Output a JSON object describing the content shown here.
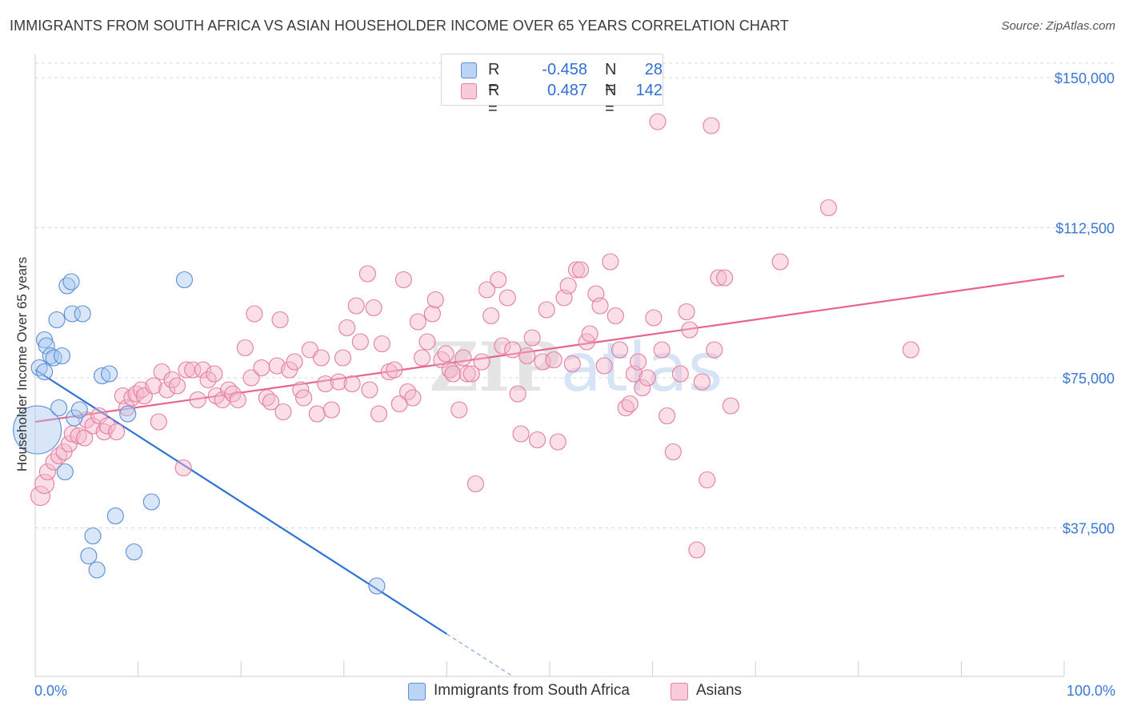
{
  "header": {
    "title": "IMMIGRANTS FROM SOUTH AFRICA VS ASIAN HOUSEHOLDER INCOME OVER 65 YEARS CORRELATION CHART",
    "source": "Source: ZipAtlas.com"
  },
  "legend": {
    "rows": [
      {
        "r_label": "R =",
        "r_value": "-0.458",
        "n_label": "N =",
        "n_value": "28"
      },
      {
        "r_label": "R =",
        "r_value": "0.487",
        "n_label": "N =",
        "n_value": "142"
      }
    ]
  },
  "bottom_legend": {
    "series1": "Immigrants from South Africa",
    "series2": "Asians"
  },
  "colors": {
    "blue_fill": "#a9c8f0",
    "blue_stroke": "#5b8fd6",
    "blue_line": "#2f72d6",
    "pink_fill": "#f5b8cb",
    "pink_stroke": "#e47fa0",
    "pink_line": "#e8648f",
    "tick_label": "#3a78d4",
    "grid": "#d9d9d9"
  },
  "chart_data": {
    "type": "scatter",
    "title": "IMMIGRANTS FROM SOUTH AFRICA VS ASIAN HOUSEHOLDER INCOME OVER 65 YEARS CORRELATION CHART",
    "xlabel": "",
    "ylabel": "Householder Income Over 65 years",
    "xlim": [
      0,
      100
    ],
    "ylim": [
      0,
      155000
    ],
    "x_tick_labels": [
      "0.0%",
      "100.0%"
    ],
    "y_ticks": [
      37500,
      75000,
      112500,
      150000
    ],
    "y_tick_labels": [
      "$37,500",
      "$75,000",
      "$112,500",
      "$150,000"
    ],
    "grid": true,
    "legend_position": "top-center",
    "watermark": "ZIPatlas",
    "series": [
      {
        "name": "Immigrants from South Africa",
        "color": "blue",
        "trend": {
          "x0": 0,
          "y0": 77000,
          "x1": 40,
          "y1": 11000,
          "dash_to_x": 46.5
        },
        "points": [
          [
            0.2,
            62000,
            30
          ],
          [
            0.4,
            77500,
            10
          ],
          [
            0.9,
            76500,
            10
          ],
          [
            0.9,
            84500,
            10
          ],
          [
            1.1,
            83000,
            10
          ],
          [
            1.5,
            80500,
            10
          ],
          [
            1.8,
            80000,
            10
          ],
          [
            2.1,
            89500,
            10
          ],
          [
            2.3,
            67500,
            10
          ],
          [
            2.6,
            80500,
            10
          ],
          [
            2.9,
            51500,
            10
          ],
          [
            3.1,
            98000,
            10
          ],
          [
            3.5,
            99000,
            10
          ],
          [
            3.6,
            91000,
            10
          ],
          [
            3.8,
            65000,
            10
          ],
          [
            4.3,
            67000,
            10
          ],
          [
            4.6,
            91000,
            10
          ],
          [
            5.2,
            30500,
            10
          ],
          [
            5.6,
            35500,
            10
          ],
          [
            6.0,
            27000,
            10
          ],
          [
            6.5,
            75500,
            10
          ],
          [
            7.2,
            76000,
            10
          ],
          [
            7.8,
            40500,
            10
          ],
          [
            9.0,
            66000,
            10
          ],
          [
            9.6,
            31500,
            10
          ],
          [
            11.3,
            44000,
            10
          ],
          [
            14.5,
            99500,
            10
          ],
          [
            33.2,
            23000,
            10
          ]
        ]
      },
      {
        "name": "Asians",
        "color": "pink",
        "trend": {
          "x0": 0,
          "y0": 64000,
          "x1": 100,
          "y1": 100500
        },
        "points": [
          [
            0.5,
            45500,
            12
          ],
          [
            0.9,
            48500,
            12
          ],
          [
            1.2,
            51500,
            10
          ],
          [
            1.8,
            54000,
            10
          ],
          [
            2.3,
            55500,
            10
          ],
          [
            2.8,
            56500,
            10
          ],
          [
            3.3,
            58500,
            10
          ],
          [
            3.6,
            61000,
            10
          ],
          [
            4.2,
            60500,
            10
          ],
          [
            4.8,
            60000,
            10
          ],
          [
            5.0,
            64500,
            10
          ],
          [
            5.6,
            63000,
            10
          ],
          [
            6.2,
            65500,
            10
          ],
          [
            6.7,
            61500,
            10
          ],
          [
            7.0,
            63000,
            10
          ],
          [
            7.9,
            61500,
            10
          ],
          [
            8.5,
            70500,
            10
          ],
          [
            8.9,
            67500,
            10
          ],
          [
            9.4,
            70000,
            10
          ],
          [
            9.8,
            71000,
            10
          ],
          [
            10.3,
            72000,
            10
          ],
          [
            10.6,
            70500,
            10
          ],
          [
            11.5,
            73000,
            10
          ],
          [
            12.0,
            64000,
            10
          ],
          [
            12.3,
            76500,
            10
          ],
          [
            12.8,
            72000,
            10
          ],
          [
            13.3,
            74500,
            10
          ],
          [
            13.8,
            73000,
            10
          ],
          [
            14.4,
            52500,
            10
          ],
          [
            14.7,
            77000,
            10
          ],
          [
            15.3,
            77000,
            10
          ],
          [
            15.8,
            69500,
            10
          ],
          [
            16.3,
            77000,
            10
          ],
          [
            16.8,
            74500,
            10
          ],
          [
            17.4,
            76000,
            10
          ],
          [
            17.6,
            70500,
            10
          ],
          [
            18.2,
            69500,
            10
          ],
          [
            18.8,
            72000,
            10
          ],
          [
            19.2,
            71000,
            10
          ],
          [
            19.7,
            69500,
            10
          ],
          [
            20.4,
            82500,
            10
          ],
          [
            21.0,
            75000,
            10
          ],
          [
            21.3,
            91000,
            10
          ],
          [
            22.0,
            77500,
            10
          ],
          [
            22.5,
            70000,
            10
          ],
          [
            22.9,
            69000,
            10
          ],
          [
            23.5,
            78000,
            10
          ],
          [
            23.8,
            89500,
            10
          ],
          [
            24.1,
            66500,
            10
          ],
          [
            24.7,
            77000,
            10
          ],
          [
            25.2,
            79000,
            10
          ],
          [
            25.8,
            72000,
            10
          ],
          [
            26.1,
            70000,
            10
          ],
          [
            26.7,
            82000,
            10
          ],
          [
            27.4,
            66000,
            10
          ],
          [
            27.8,
            80000,
            10
          ],
          [
            28.2,
            73500,
            10
          ],
          [
            28.8,
            67000,
            10
          ],
          [
            29.5,
            74000,
            10
          ],
          [
            29.9,
            80000,
            10
          ],
          [
            30.3,
            87500,
            10
          ],
          [
            30.8,
            73500,
            10
          ],
          [
            31.2,
            93000,
            10
          ],
          [
            31.6,
            84000,
            10
          ],
          [
            32.3,
            101000,
            10
          ],
          [
            32.5,
            72000,
            10
          ],
          [
            32.9,
            92500,
            10
          ],
          [
            33.4,
            66000,
            10
          ],
          [
            33.7,
            83500,
            10
          ],
          [
            34.4,
            76500,
            10
          ],
          [
            34.9,
            77000,
            10
          ],
          [
            35.4,
            68500,
            10
          ],
          [
            35.8,
            99500,
            10
          ],
          [
            36.2,
            71500,
            10
          ],
          [
            36.7,
            70000,
            10
          ],
          [
            37.2,
            89000,
            10
          ],
          [
            37.6,
            80000,
            10
          ],
          [
            38.1,
            84000,
            10
          ],
          [
            38.6,
            91000,
            10
          ],
          [
            38.9,
            94500,
            10
          ],
          [
            39.5,
            79500,
            10
          ],
          [
            39.9,
            81000,
            10
          ],
          [
            40.3,
            77000,
            10
          ],
          [
            40.6,
            76000,
            10
          ],
          [
            41.2,
            67000,
            10
          ],
          [
            41.6,
            80000,
            10
          ],
          [
            42.0,
            76000,
            10
          ],
          [
            42.4,
            76000,
            10
          ],
          [
            42.8,
            48500,
            10
          ],
          [
            43.4,
            79000,
            10
          ],
          [
            43.9,
            97000,
            10
          ],
          [
            44.3,
            90500,
            10
          ],
          [
            45.0,
            99500,
            10
          ],
          [
            45.4,
            83000,
            10
          ],
          [
            45.9,
            95000,
            10
          ],
          [
            46.4,
            82000,
            10
          ],
          [
            46.9,
            71000,
            10
          ],
          [
            47.2,
            61000,
            10
          ],
          [
            47.8,
            80500,
            10
          ],
          [
            48.3,
            85000,
            10
          ],
          [
            48.8,
            59500,
            10
          ],
          [
            49.3,
            79000,
            10
          ],
          [
            49.7,
            92000,
            10
          ],
          [
            50.4,
            79500,
            10
          ],
          [
            50.8,
            59000,
            10
          ],
          [
            51.4,
            95000,
            10
          ],
          [
            51.8,
            98000,
            10
          ],
          [
            52.2,
            78500,
            10
          ],
          [
            52.6,
            102000,
            10
          ],
          [
            53.0,
            102000,
            10
          ],
          [
            53.6,
            84000,
            10
          ],
          [
            53.9,
            86000,
            10
          ],
          [
            54.5,
            96000,
            10
          ],
          [
            54.9,
            93000,
            10
          ],
          [
            55.3,
            78000,
            10
          ],
          [
            55.9,
            104000,
            10
          ],
          [
            56.4,
            90500,
            10
          ],
          [
            56.8,
            82000,
            10
          ],
          [
            57.4,
            67500,
            10
          ],
          [
            57.8,
            68500,
            10
          ],
          [
            58.2,
            76000,
            10
          ],
          [
            58.6,
            79000,
            10
          ],
          [
            59.0,
            72500,
            10
          ],
          [
            59.5,
            75000,
            10
          ],
          [
            60.1,
            90000,
            10
          ],
          [
            60.5,
            139000,
            10
          ],
          [
            60.9,
            82000,
            10
          ],
          [
            61.4,
            65500,
            10
          ],
          [
            62.0,
            56500,
            10
          ],
          [
            62.7,
            76000,
            10
          ],
          [
            63.3,
            91500,
            10
          ],
          [
            63.6,
            87000,
            10
          ],
          [
            64.3,
            32000,
            10
          ],
          [
            64.8,
            74000,
            10
          ],
          [
            65.3,
            49500,
            10
          ],
          [
            65.7,
            138000,
            10
          ],
          [
            66.0,
            82000,
            10
          ],
          [
            66.4,
            100000,
            10
          ],
          [
            67.0,
            100000,
            10
          ],
          [
            67.6,
            68000,
            10
          ],
          [
            72.4,
            104000,
            10
          ],
          [
            77.1,
            117500,
            10
          ],
          [
            85.1,
            82000,
            10
          ]
        ]
      }
    ]
  }
}
